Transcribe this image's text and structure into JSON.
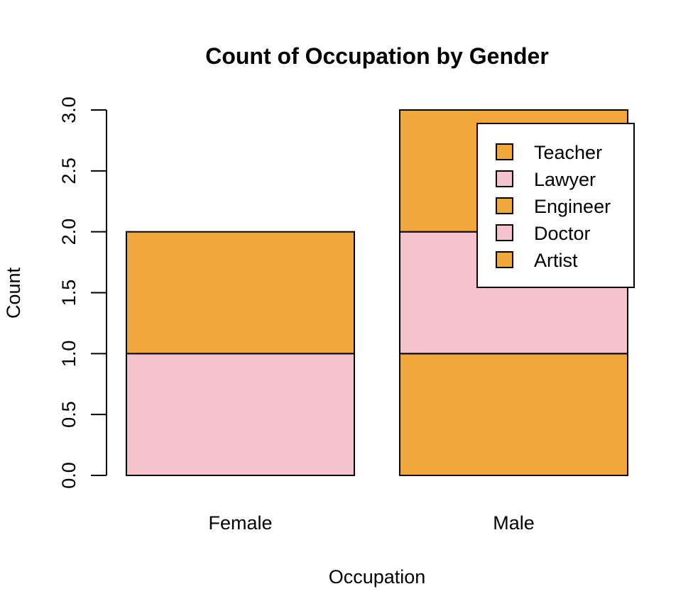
{
  "chart_data": {
    "type": "bar",
    "stacked": true,
    "title": "Count of Occupation by Gender",
    "xlabel": "Occupation",
    "ylabel": "Count",
    "categories": [
      "Female",
      "Male"
    ],
    "ylim": [
      0,
      3
    ],
    "yticks": [
      "0.0",
      "0.5",
      "1.0",
      "1.5",
      "2.0",
      "2.5",
      "3.0"
    ],
    "grid": false,
    "legend_position": "top-right",
    "series": [
      {
        "name": "Artist",
        "color": "#F0A83C",
        "values": [
          0,
          1
        ]
      },
      {
        "name": "Doctor",
        "color": "#F4C3CB",
        "values": [
          1,
          1
        ]
      },
      {
        "name": "Engineer",
        "color": "#F0A83C",
        "values": [
          1,
          1
        ]
      },
      {
        "name": "Lawyer",
        "color": "#F4C3CB",
        "values": [
          0,
          0
        ]
      },
      {
        "name": "Teacher",
        "color": "#F0A83C",
        "values": [
          0,
          0
        ]
      }
    ],
    "legend_order": [
      "Teacher",
      "Lawyer",
      "Engineer",
      "Doctor",
      "Artist"
    ]
  }
}
